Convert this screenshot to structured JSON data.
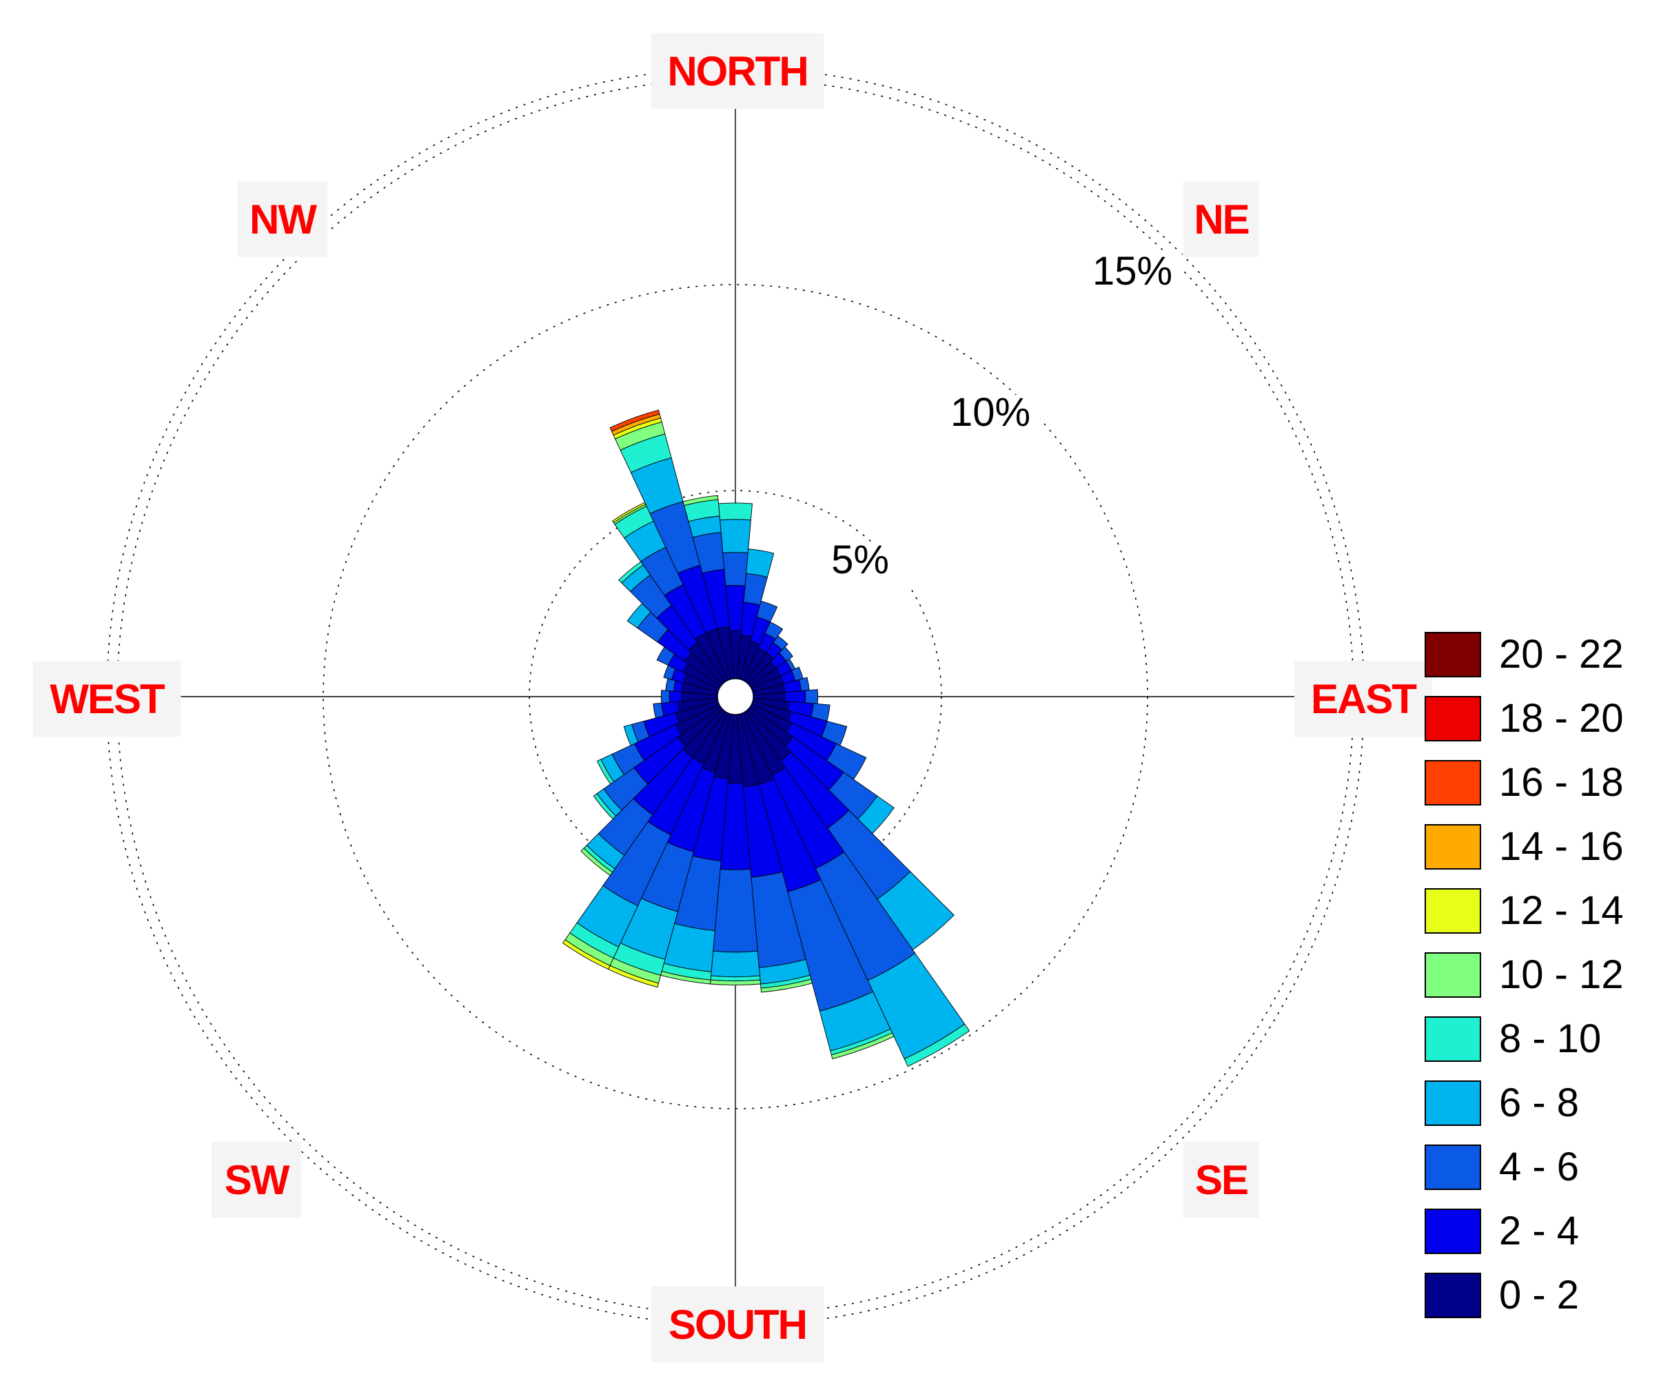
{
  "chart_data": {
    "type": "wind-rose",
    "directions": {
      "north": "NORTH",
      "northeast": "NE",
      "east": "EAST",
      "southeast": "SE",
      "south": "SOUTH",
      "southwest": "SW",
      "west": "WEST",
      "northwest": "NW"
    },
    "label_colors": {
      "direction_text": "#ff0000",
      "direction_box": "#f4f4f4"
    },
    "rings": [
      {
        "value": 5,
        "label": "5%"
      },
      {
        "value": 10,
        "label": "10%"
      },
      {
        "value": 15,
        "label": "15%"
      }
    ],
    "calm_radius_percent": 0.4,
    "max_percent": 16,
    "speed_classes": [
      {
        "label": "0 - 2",
        "color": "#00008b"
      },
      {
        "label": "2 - 4",
        "color": "#0000ee"
      },
      {
        "label": "4 - 6",
        "color": "#0a5ae6"
      },
      {
        "label": "6 - 8",
        "color": "#00b4f0"
      },
      {
        "label": "8 - 10",
        "color": "#20f0d2"
      },
      {
        "label": "10 - 12",
        "color": "#80ff80"
      },
      {
        "label": "12 - 14",
        "color": "#e8ff18"
      },
      {
        "label": "14 - 16",
        "color": "#ffaa00"
      },
      {
        "label": "16 - 18",
        "color": "#ff4000"
      },
      {
        "label": "18 - 20",
        "color": "#ee0000"
      },
      {
        "label": "20 - 22",
        "color": "#800000"
      }
    ],
    "sector_width_deg": 10,
    "sectors": [
      {
        "direction_deg": 0,
        "cumulative": [
          1.2,
          2.3,
          3.1,
          3.9,
          4.3
        ]
      },
      {
        "direction_deg": 10,
        "cumulative": [
          1.1,
          1.9,
          2.6,
          3.2
        ]
      },
      {
        "direction_deg": 20,
        "cumulative": [
          1.0,
          1.6,
          2.0
        ]
      },
      {
        "direction_deg": 30,
        "cumulative": [
          0.9,
          1.3,
          1.6
        ]
      },
      {
        "direction_deg": 40,
        "cumulative": [
          0.9,
          1.2,
          1.4
        ]
      },
      {
        "direction_deg": 50,
        "cumulative": [
          0.8,
          1.1,
          1.3
        ]
      },
      {
        "direction_deg": 60,
        "cumulative": [
          0.8,
          1.1,
          1.2
        ]
      },
      {
        "direction_deg": 70,
        "cumulative": [
          0.8,
          1.1,
          1.3
        ]
      },
      {
        "direction_deg": 80,
        "cumulative": [
          0.8,
          1.2,
          1.4
        ]
      },
      {
        "direction_deg": 90,
        "cumulative": [
          0.8,
          1.3,
          1.6
        ]
      },
      {
        "direction_deg": 100,
        "cumulative": [
          0.9,
          1.5,
          1.9
        ]
      },
      {
        "direction_deg": 110,
        "cumulative": [
          1.0,
          1.9,
          2.4
        ]
      },
      {
        "direction_deg": 120,
        "cumulative": [
          1.1,
          2.3,
          3.1
        ]
      },
      {
        "direction_deg": 130,
        "cumulative": [
          1.3,
          2.8,
          3.8,
          4.3
        ]
      },
      {
        "direction_deg": 140,
        "cumulative": [
          1.5,
          3.5,
          5.6,
          7.1
        ]
      },
      {
        "direction_deg": 150,
        "cumulative": [
          1.7,
          4.2,
          7.2,
          9.3,
          9.5
        ]
      },
      {
        "direction_deg": 160,
        "cumulative": [
          1.8,
          4.5,
          7.5,
          8.5,
          8.6,
          8.7
        ]
      },
      {
        "direction_deg": 170,
        "cumulative": [
          1.8,
          4.0,
          6.2,
          6.6,
          6.7,
          6.8
        ]
      },
      {
        "direction_deg": 180,
        "cumulative": [
          1.7,
          3.8,
          5.8,
          6.4,
          6.5,
          6.6
        ]
      },
      {
        "direction_deg": 190,
        "cumulative": [
          1.6,
          3.6,
          5.3,
          6.3,
          6.5,
          6.6
        ]
      },
      {
        "direction_deg": 200,
        "cumulative": [
          1.5,
          3.5,
          5.0,
          6.2,
          6.6,
          6.8,
          6.9
        ]
      },
      {
        "direction_deg": 210,
        "cumulative": [
          1.4,
          3.3,
          5.2,
          6.3,
          6.6,
          6.8,
          6.9
        ]
      },
      {
        "direction_deg": 220,
        "cumulative": [
          1.4,
          3.1,
          4.3,
          4.7,
          4.8,
          4.9
        ]
      },
      {
        "direction_deg": 230,
        "cumulative": [
          1.3,
          2.6,
          3.5,
          3.7,
          3.8
        ]
      },
      {
        "direction_deg": 240,
        "cumulative": [
          1.2,
          2.3,
          2.9,
          3.2,
          3.3
        ]
      },
      {
        "direction_deg": 250,
        "cumulative": [
          1.1,
          1.9,
          2.2,
          2.4
        ]
      },
      {
        "direction_deg": 260,
        "cumulative": [
          1.0,
          1.4,
          1.6
        ]
      },
      {
        "direction_deg": 270,
        "cumulative": [
          0.9,
          1.2,
          1.4
        ]
      },
      {
        "direction_deg": 280,
        "cumulative": [
          0.9,
          1.1,
          1.3
        ]
      },
      {
        "direction_deg": 290,
        "cumulative": [
          0.9,
          1.2,
          1.4
        ]
      },
      {
        "direction_deg": 300,
        "cumulative": [
          1.0,
          1.4,
          1.7
        ]
      },
      {
        "direction_deg": 310,
        "cumulative": [
          1.1,
          1.9,
          2.5,
          2.8
        ]
      },
      {
        "direction_deg": 320,
        "cumulative": [
          1.2,
          2.3,
          3.2,
          3.5,
          3.6
        ]
      },
      {
        "direction_deg": 330,
        "cumulative": [
          1.3,
          2.6,
          3.6,
          4.3,
          4.7,
          4.75,
          4.8
        ]
      },
      {
        "direction_deg": 340,
        "cumulative": [
          1.3,
          2.9,
          4.5,
          5.6,
          6.2,
          6.5,
          6.6,
          6.7,
          6.8
        ]
      },
      {
        "direction_deg": 350,
        "cumulative": [
          1.3,
          2.7,
          3.6,
          4.0,
          4.4,
          4.5
        ]
      }
    ]
  }
}
